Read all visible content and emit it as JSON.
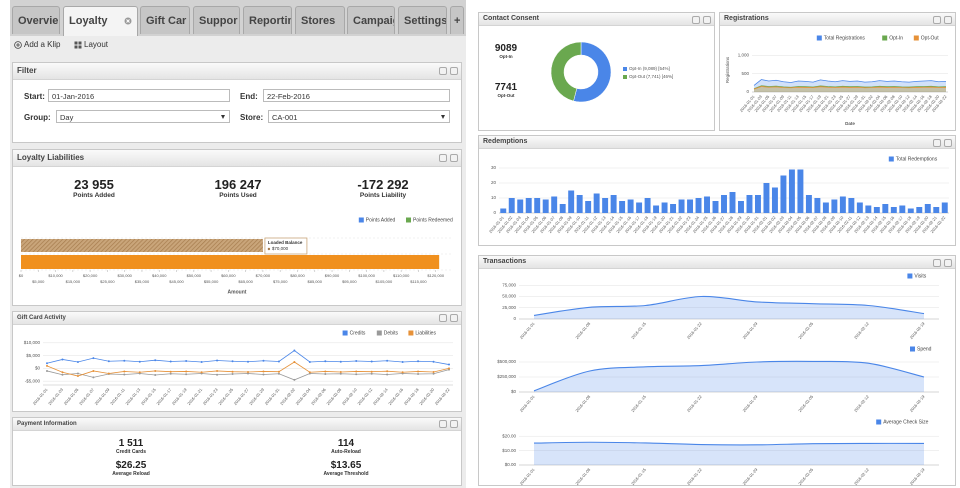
{
  "tabs": [
    "Overvie",
    "Loyalty",
    "Gift Car",
    "Suppor",
    "Reportin",
    "Stores",
    "Campaig",
    "Settings",
    "+"
  ],
  "toolbar": {
    "add_klip": "Add a Klip",
    "layout": "Layout"
  },
  "filter": {
    "title": "Filter",
    "start_label": "Start:",
    "start": "01-Jan-2016",
    "end_label": "End:",
    "end": "22-Feb-2016",
    "group_label": "Group:",
    "group": "Day",
    "store_label": "Store:",
    "store": "CA-001"
  },
  "liabilities": {
    "title": "Loyalty Liabilities",
    "stats": [
      {
        "value": "23 955",
        "label": "Points Added"
      },
      {
        "value": "196 247",
        "label": "Points Used"
      },
      {
        "value": "-172 292",
        "label": "Points Liability"
      }
    ],
    "chart": {
      "type": "hbar",
      "legend": [
        {
          "name": "Points Added",
          "color": "#4a86e8"
        },
        {
          "name": "Points Redeemed",
          "color": "#6aa84f"
        }
      ],
      "bars": [
        {
          "value": 70000,
          "value_label": "$70,000",
          "color": "#a67c4e",
          "pattern": "hatch"
        },
        {
          "value": 121000,
          "color": "#f0901e"
        }
      ],
      "tooltip": {
        "title": "Loaded Balance"
      },
      "xlim": [
        0,
        125000
      ],
      "xticks": [
        {
          "value": 0,
          "label": "$0"
        },
        {
          "value": 5000,
          "label": "$5,000"
        },
        {
          "value": 10000,
          "label": "$10,000"
        },
        {
          "value": 15000,
          "label": "$15,000"
        },
        {
          "value": 20000,
          "label": "$20,000"
        },
        {
          "value": 25000,
          "label": "$25,000"
        },
        {
          "value": 30000,
          "label": "$30,000"
        },
        {
          "value": 35000,
          "label": "$35,000"
        },
        {
          "value": 40000,
          "label": "$40,000"
        },
        {
          "value": 45000,
          "label": "$45,000"
        },
        {
          "value": 50000,
          "label": "$50,000"
        },
        {
          "value": 55000,
          "label": "$55,000"
        },
        {
          "value": 60000,
          "label": "$60,000"
        },
        {
          "value": 65000,
          "label": "$65,000"
        },
        {
          "value": 70000,
          "label": "$70,000"
        },
        {
          "value": 75000,
          "label": "$75,000"
        },
        {
          "value": 80000,
          "label": "$80,000"
        },
        {
          "value": 85000,
          "label": "$85,000"
        },
        {
          "value": 90000,
          "label": "$90,000"
        },
        {
          "value": 95000,
          "label": "$95,000"
        },
        {
          "value": 100000,
          "label": "$100,000"
        },
        {
          "value": 105000,
          "label": "$105,000"
        },
        {
          "value": 110000,
          "label": "$110,000"
        },
        {
          "value": 115000,
          "label": "$115,000"
        },
        {
          "value": 120000,
          "label": "$120,000"
        }
      ],
      "xlabel": "Amount",
      "grid": true
    }
  },
  "gift_card": {
    "title": "Gift Card Activity",
    "chart": {
      "type": "line",
      "markers": true,
      "grid": true,
      "series": [
        {
          "name": "Credits",
          "color": "#4a86e8",
          "values": [
            2000,
            3500,
            2500,
            4000,
            2800,
            3000,
            2600,
            3200,
            2700,
            2900,
            2500,
            3100,
            2800,
            2600,
            3000,
            2700,
            7000,
            2500,
            2800,
            2600,
            2900,
            2700,
            3000,
            2500,
            2800,
            2600,
            1500
          ]
        },
        {
          "name": "Debits",
          "color": "#999999",
          "values": [
            -1000,
            -2500,
            -2000,
            -3500,
            -2200,
            -2400,
            -2000,
            -2600,
            -2100,
            -2300,
            -2000,
            -2500,
            -2200,
            -2000,
            -2400,
            -2100,
            -4500,
            -2000,
            -2200,
            -2100,
            -2300,
            -2100,
            -2400,
            -2000,
            -2200,
            -2100,
            -500
          ]
        },
        {
          "name": "Liabilities",
          "color": "#e69138",
          "values": [
            1000,
            -1500,
            -3000,
            -1000,
            -2000,
            -1200,
            -1500,
            -1000,
            -1300,
            -1200,
            -1500,
            -1000,
            -1300,
            -1400,
            -1200,
            -1300,
            2500,
            -1500,
            -1200,
            -1400,
            -1200,
            -1300,
            -1100,
            -1500,
            -1200,
            -1400,
            0
          ]
        }
      ],
      "ylim": [
        -6500,
        11500
      ],
      "yticks": [
        {
          "value": 10000,
          "label": "$10,000"
        },
        {
          "value": 5000,
          "label": "$5,000"
        },
        {
          "value": 0,
          "label": "$0"
        },
        {
          "value": -5000,
          "label": "-$5,000"
        }
      ]
    }
  },
  "payment": {
    "title": "Payment Information",
    "stats": [
      {
        "value": "1 511",
        "label": "Credit Cards"
      },
      {
        "value": "114",
        "label": "Auto-Reload"
      },
      {
        "value": "$26.25",
        "label": "Average Reload"
      },
      {
        "value": "$13.65",
        "label": "Average Threshold"
      }
    ]
  },
  "consent": {
    "title": "Contact Consent",
    "stats": [
      {
        "value": "9089",
        "label": "Opt-In"
      },
      {
        "value": "7741",
        "label": "Opt-Out"
      }
    ],
    "chart": {
      "type": "donut",
      "values": [
        9089,
        7741
      ],
      "value_labels": [
        "Opt-In (9,089) [54%]",
        "Opt-Out (7,741) [46%]"
      ],
      "colors": [
        "#4a86e8",
        "#6aa84f"
      ]
    }
  },
  "registrations": {
    "title": "Registrations",
    "chart": {
      "type": "area",
      "grid": true,
      "series": [
        {
          "name": "Total Registrations",
          "color": "#4a86e8",
          "values": [
            180,
            340,
            300,
            320,
            280,
            260,
            300,
            290,
            270,
            330,
            300,
            280,
            310,
            290,
            300,
            270,
            280,
            310,
            290,
            300,
            280,
            270,
            290,
            300,
            310,
            280,
            290
          ]
        },
        {
          "name": "Opt-In",
          "color": "#6aa84f",
          "values": [
            90,
            170,
            150,
            160,
            140,
            130,
            150,
            145,
            135,
            165,
            150,
            140,
            155,
            145,
            150,
            135,
            140,
            155,
            145,
            150,
            140,
            135,
            145,
            150,
            155,
            140,
            145
          ]
        },
        {
          "name": "Opt-Out",
          "color": "#e69138",
          "values": [
            80,
            150,
            130,
            140,
            120,
            115,
            130,
            125,
            120,
            145,
            130,
            120,
            135,
            125,
            130,
            115,
            120,
            135,
            125,
            130,
            120,
            115,
            125,
            130,
            135,
            120,
            125
          ]
        }
      ],
      "ylim": [
        0,
        1200
      ],
      "yticks": [
        0,
        500,
        {
          "value": 1000,
          "label": "1,000"
        }
      ],
      "xlabel": "Date",
      "ylabel": "Registrations"
    }
  },
  "redemptions": {
    "title": "Redemptions",
    "chart": {
      "type": "bar",
      "grid": true,
      "series": [
        {
          "name": "Total Redemptions",
          "color": "#4a86e8",
          "values": [
            3,
            10,
            9,
            10,
            10,
            9,
            11,
            6,
            15,
            12,
            8,
            13,
            10,
            12,
            8,
            9,
            7,
            10,
            5,
            7,
            6,
            9,
            9,
            10,
            11,
            8,
            12,
            14,
            8,
            12,
            12,
            20,
            17,
            25,
            29,
            29,
            12,
            10,
            7,
            9,
            11,
            10,
            7,
            5,
            4,
            6,
            4,
            5,
            3,
            4,
            6,
            4,
            7
          ]
        }
      ],
      "ylim": [
        0,
        32
      ],
      "yticks": [
        0,
        10,
        20,
        30
      ]
    }
  },
  "transactions": {
    "title": "Transactions",
    "charts": [
      {
        "type": "area",
        "smooth": true,
        "grid": true,
        "series": [
          {
            "name": "Visits",
            "color": "#4a86e8",
            "values": [
              8000,
              26000,
              30000,
              50000,
              38000,
              34000,
              30000,
              12000
            ]
          }
        ],
        "ylim": [
          0,
          80000
        ],
        "yticks": [
          0,
          {
            "value": 25000,
            "label": "25,000"
          },
          {
            "value": 50000,
            "label": "50,000"
          },
          {
            "value": 75000,
            "label": "75,000"
          }
        ]
      },
      {
        "type": "area",
        "smooth": true,
        "grid": true,
        "series": [
          {
            "name": "Spend",
            "color": "#4a86e8",
            "values": [
              20000,
              350000,
              420000,
              440000,
              500000,
              510000,
              480000,
              250000
            ]
          }
        ],
        "ylim": [
          0,
          600000
        ],
        "yticks": [
          {
            "value": 0,
            "label": "$0"
          },
          {
            "value": 250000,
            "label": "$250,000"
          },
          {
            "value": 500000,
            "label": "$500,000"
          }
        ]
      },
      {
        "type": "area",
        "smooth": true,
        "grid": true,
        "series": [
          {
            "name": "Average Check Size",
            "color": "#4a86e8",
            "values": [
              15.2,
              15.8,
              15.3,
              14.2,
              14.0,
              14.8,
              15.0,
              15.0
            ]
          }
        ],
        "ylim": [
          0,
          25
        ],
        "yticks": [
          {
            "value": 0,
            "label": "$0.00"
          },
          {
            "value": 10,
            "label": "$10.00"
          },
          {
            "value": 20,
            "label": "$20.00"
          }
        ]
      }
    ]
  },
  "dates": [
    "2016-01-01",
    "2016-01-02",
    "2016-01-03",
    "2016-01-04",
    "2016-01-05",
    "2016-01-06",
    "2016-01-07",
    "2016-01-08",
    "2016-01-09",
    "2016-01-10",
    "2016-01-11",
    "2016-01-12",
    "2016-01-13",
    "2016-01-14",
    "2016-01-15",
    "2016-01-16",
    "2016-01-17",
    "2016-01-18",
    "2016-01-19",
    "2016-01-20",
    "2016-01-21",
    "2016-01-22",
    "2016-01-23",
    "2016-01-24",
    "2016-01-25",
    "2016-01-26",
    "2016-01-27",
    "2016-01-28",
    "2016-01-29",
    "2016-01-30",
    "2016-01-31",
    "2016-02-01",
    "2016-02-02",
    "2016-02-03",
    "2016-02-04",
    "2016-02-05",
    "2016-02-06",
    "2016-02-07",
    "2016-02-08",
    "2016-02-09",
    "2016-02-10",
    "2016-02-11",
    "2016-02-12",
    "2016-02-13",
    "2016-02-14",
    "2016-02-15",
    "2016-02-16",
    "2016-02-17",
    "2016-02-18",
    "2016-02-19",
    "2016-02-20",
    "2016-02-21",
    "2016-02-22"
  ]
}
